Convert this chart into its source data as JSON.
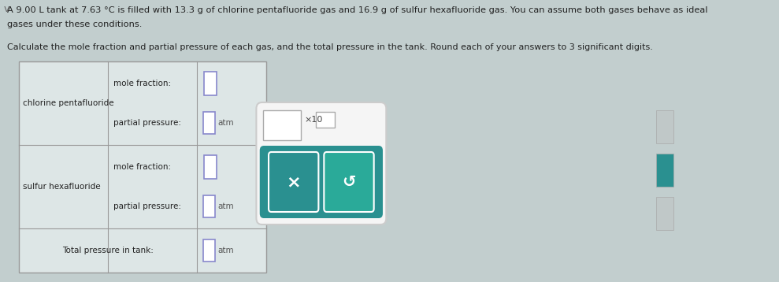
{
  "bg_color": "#c2cece",
  "title_line1": "A 9.00 L tank at 7.63 °C is filled with 13.3 g of chlorine pentafluoride gas and 16.9 g of sulfur hexafluoride gas. You can assume both gases behave as ideal",
  "title_line2": "gases under these conditions.",
  "subtitle": "Calculate the mole fraction and partial pressure of each gas, and the total pressure in the tank. Round each of your answers to 3 significant digits.",
  "table_bg": "#dde6e6",
  "table_border": "#999999",
  "text_dark": "#222222",
  "input_border": "#8888cc",
  "input_fill": "#ffffff",
  "atm_color": "#555555",
  "popup_white_bg": "#f5f5f5",
  "popup_teal_bg": "#2a9090",
  "popup_border": "#cccccc",
  "btn_x_color": "#2a9090",
  "btn_r_color": "#2aaa99",
  "side_tab_gray": "#c0c8c8",
  "side_tab_teal": "#2a9090",
  "chevron_color": "#666666"
}
